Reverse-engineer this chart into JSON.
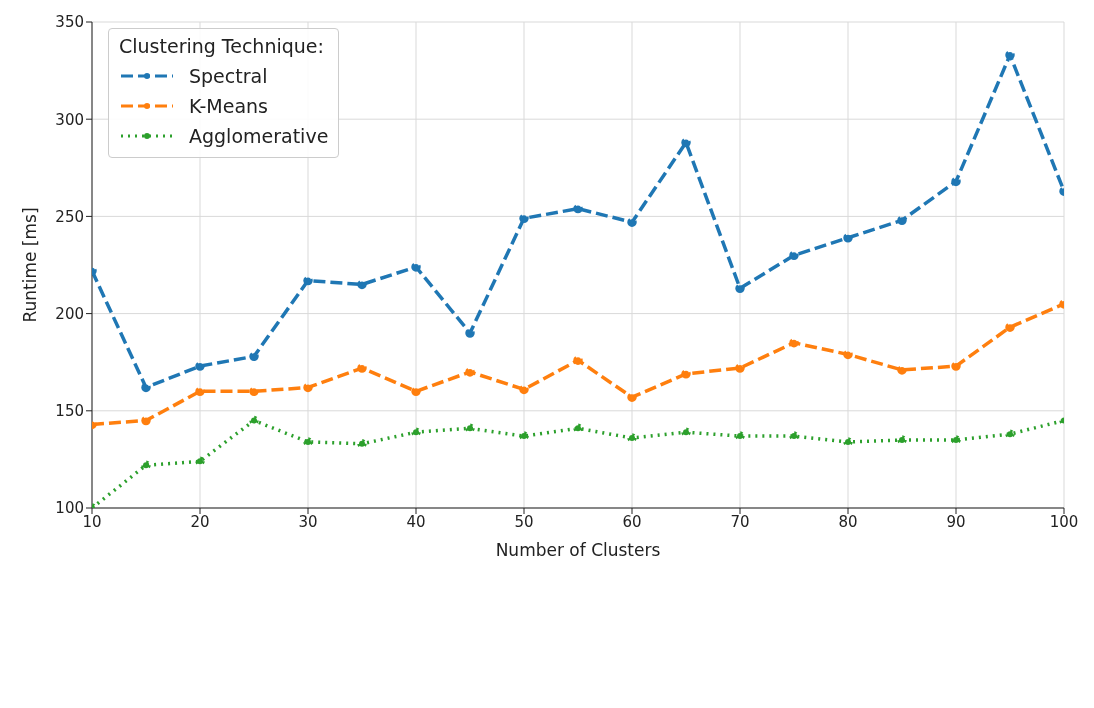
{
  "chart_data": {
    "type": "line",
    "xlabel": "Number of Clusters",
    "ylabel": "Runtime [ms]",
    "legend_title": "Clustering Technique:",
    "x": [
      10,
      15,
      20,
      25,
      30,
      35,
      40,
      45,
      50,
      55,
      60,
      65,
      70,
      75,
      80,
      85,
      90,
      95,
      100
    ],
    "series": [
      {
        "name": "Spectral",
        "color": "#1f77b4",
        "line_style": "dashed",
        "values": [
          222,
          162,
          173,
          178,
          217,
          215,
          224,
          190,
          249,
          254,
          247,
          288,
          213,
          230,
          239,
          248,
          268,
          333,
          263
        ]
      },
      {
        "name": "K-Means",
        "color": "#ff7f0e",
        "line_style": "dashed",
        "values": [
          143,
          145,
          160,
          160,
          162,
          172,
          160,
          170,
          161,
          176,
          157,
          169,
          172,
          185,
          179,
          171,
          173,
          193,
          205
        ]
      },
      {
        "name": "Agglomerative",
        "color": "#2ca02c",
        "line_style": "dotted",
        "values": [
          100,
          122,
          124,
          145,
          134,
          133,
          139,
          141,
          137,
          141,
          136,
          139,
          137,
          137,
          134,
          135,
          135,
          138,
          145
        ]
      }
    ],
    "xlim": [
      10,
      100
    ],
    "xticks": [
      10,
      20,
      30,
      40,
      50,
      60,
      70,
      80,
      90,
      100
    ],
    "ylim": [
      100,
      350
    ],
    "yticks": [
      100,
      150,
      200,
      250,
      300,
      350
    ],
    "grid": true,
    "legend": "top left",
    "marker": "circle"
  }
}
